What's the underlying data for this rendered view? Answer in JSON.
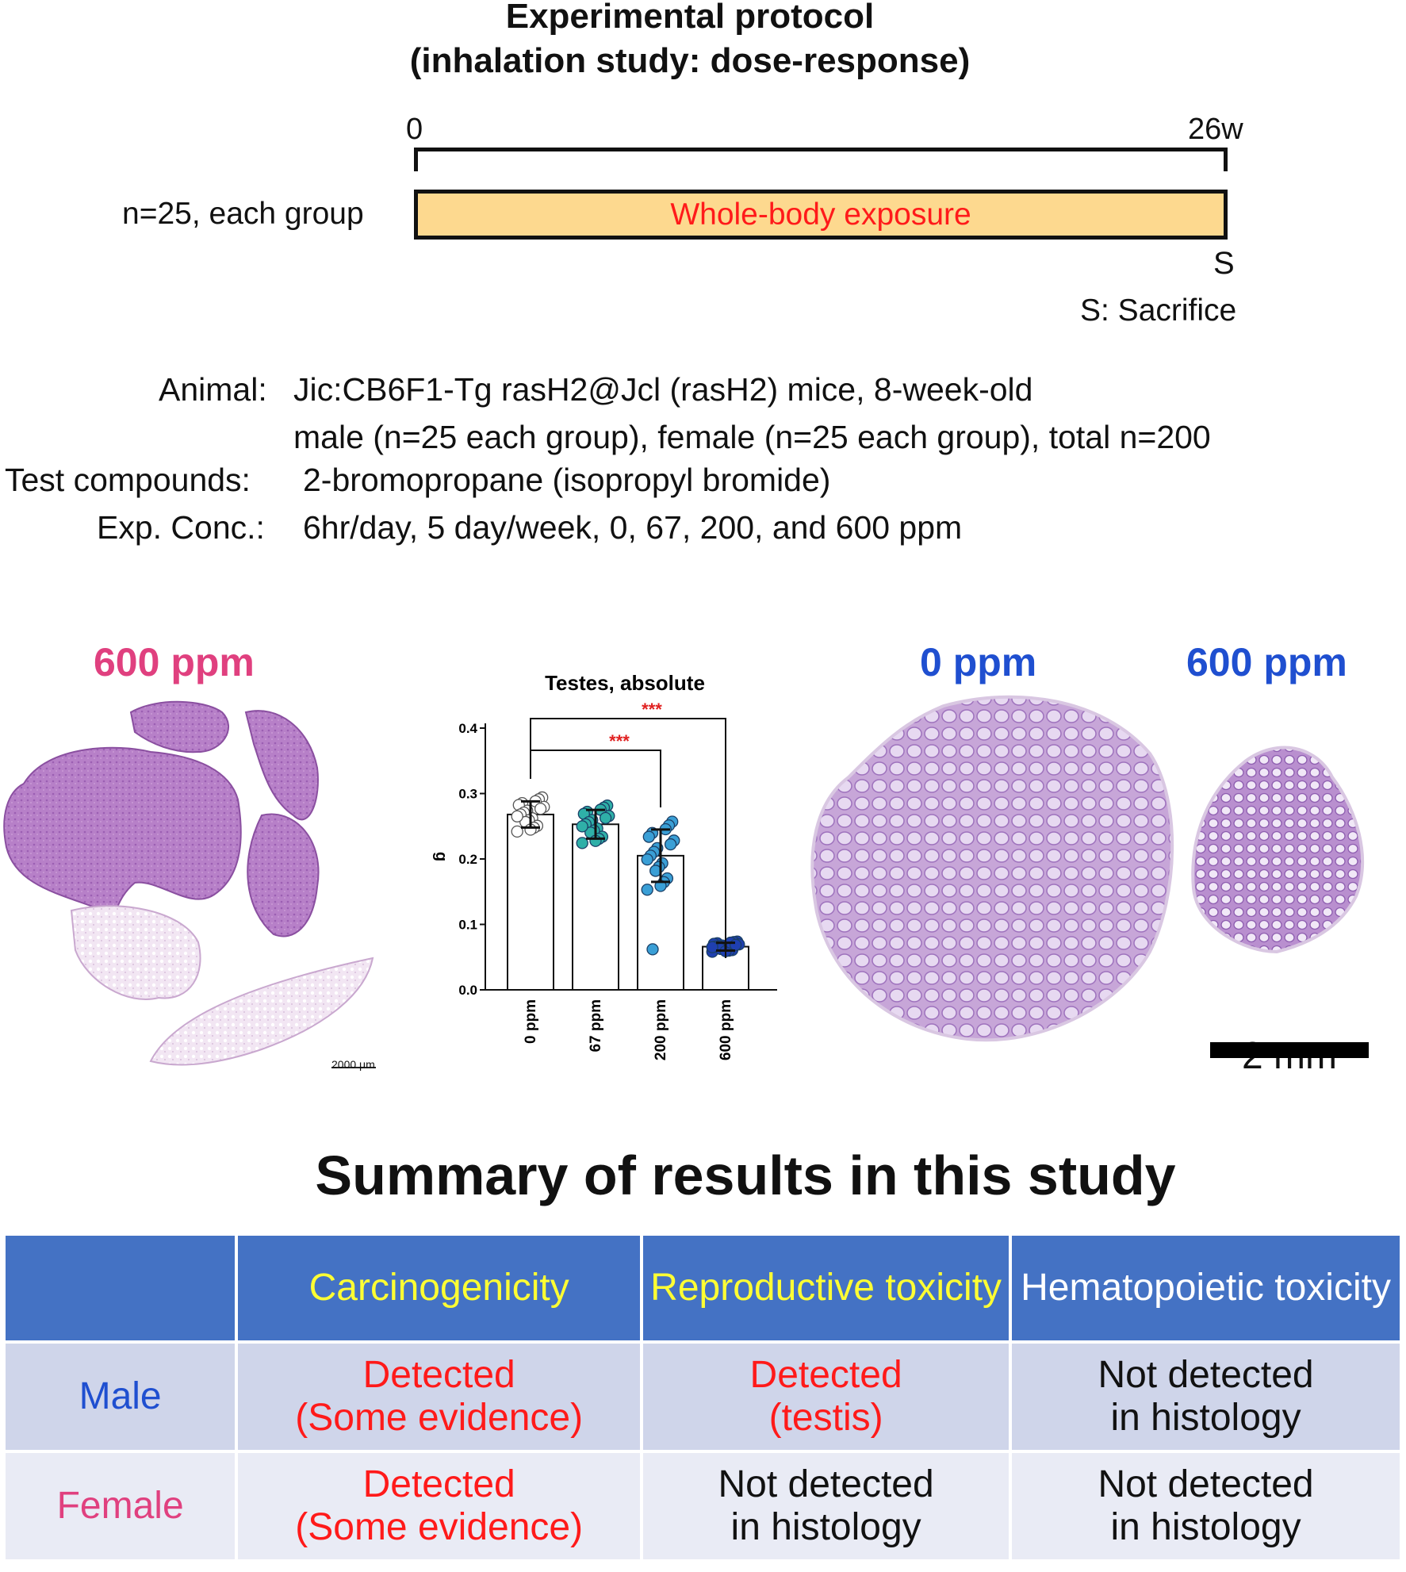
{
  "protocol": {
    "title_line1": "Experimental protocol",
    "title_line2": "(inhalation study: dose-response)",
    "start_label": "0",
    "end_label": "26w",
    "group_label": "n=25, each group",
    "exposure_label": "Whole-body exposure",
    "sacrifice_marker": "S",
    "sacrifice_legend": "S: Sacrifice"
  },
  "study_info": {
    "animal_key": "Animal:",
    "animal_value_line1": "Jic:CB6F1-Tg rasH2@Jcl (rasH2) mice, 8-week-old",
    "animal_value_line2": "male (n=25 each group), female (n=25 each group), total n=200",
    "compounds_key": "Test compounds:",
    "compounds_value": "2-bromopropane (isopropyl bromide)",
    "conc_key": "Exp. Conc.:",
    "conc_value": "6hr/day, 5 day/week, 0, 67, 200,  and 600 ppm"
  },
  "panels": {
    "lung_label": "600 ppm",
    "lung_scalebar": "2000 μm",
    "testis_label_control": "0 ppm",
    "testis_label_high": "600 ppm",
    "testis_scalebar": "2 mm"
  },
  "chart_data": {
    "type": "bar",
    "title": "Testes, absolute",
    "ylabel": "g",
    "xlabel": "",
    "ylim": [
      0,
      0.4
    ],
    "yticks": [
      "0.0",
      "0.1",
      "0.2",
      "0.3",
      "0.4"
    ],
    "categories": [
      "0 ppm",
      "67 ppm",
      "200 ppm",
      "600 ppm"
    ],
    "values": [
      0.268,
      0.253,
      0.205,
      0.066
    ],
    "sd": [
      0.02,
      0.022,
      0.04,
      0.006
    ],
    "significance": [
      {
        "from": "0 ppm",
        "to": "200 ppm",
        "label": "***"
      },
      {
        "from": "0 ppm",
        "to": "600 ppm",
        "label": "***"
      }
    ],
    "point_colors": [
      "#ffffff",
      "#2fb0a8",
      "#3a9fd6",
      "#1f3fb0"
    ]
  },
  "summary": {
    "title": "Summary of results in this study",
    "columns": [
      "",
      "Carcinogenicity",
      "Reproductive toxicity",
      "Hematopoietic toxicity"
    ],
    "rows": [
      {
        "label": "Male",
        "carcinogenicity": [
          "Detected",
          "(Some evidence)"
        ],
        "reproductive": [
          "Detected",
          "(testis)"
        ],
        "hematopoietic": [
          "Not detected",
          "in histology"
        ]
      },
      {
        "label": "Female",
        "carcinogenicity": [
          "Detected",
          "(Some evidence)"
        ],
        "reproductive": [
          "Not detected",
          "in histology"
        ],
        "hematopoietic": [
          "Not detected",
          "in histology"
        ]
      }
    ]
  },
  "colors": {
    "male": "#1f4fd0",
    "female": "#e0407f",
    "control_dose": "#1f4fd0",
    "lung_dose": "#e0407f",
    "header_bg": "#4472c4",
    "header_gold": "#ffff33",
    "detected": "#ff1a1a"
  }
}
